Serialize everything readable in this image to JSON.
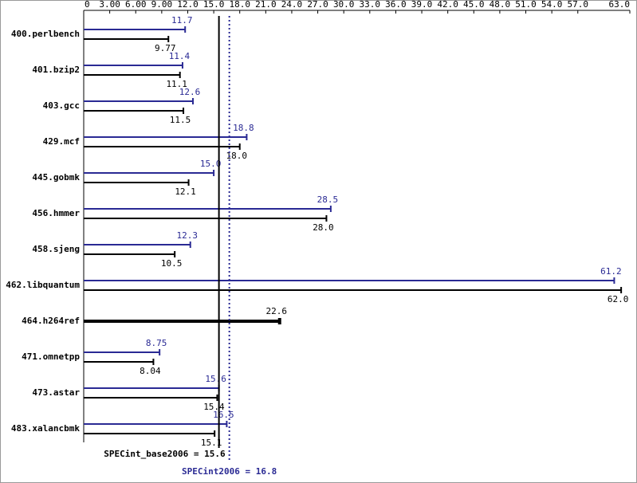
{
  "chart_data": {
    "type": "bar",
    "orientation": "horizontal",
    "categories": [
      "400.perlbench",
      "401.bzip2",
      "403.gcc",
      "429.mcf",
      "445.gobmk",
      "456.hmmer",
      "458.sjeng",
      "462.libquantum",
      "464.h264ref",
      "471.omnetpp",
      "473.astar",
      "483.xalancbmk"
    ],
    "series": [
      {
        "color": "#2a2a94",
        "values": [
          11.7,
          11.4,
          12.6,
          18.8,
          15.0,
          28.5,
          12.3,
          61.2,
          null,
          8.75,
          15.6,
          16.5
        ],
        "value_labels": [
          "11.7",
          "11.4",
          "12.6",
          "18.8",
          "15.0",
          "28.5",
          "12.3",
          "61.2",
          null,
          "8.75",
          "15.6",
          "16.5"
        ]
      },
      {
        "color": "#000000",
        "values": [
          9.77,
          11.1,
          11.5,
          18.0,
          12.1,
          28.0,
          10.5,
          62.0,
          22.6,
          8.04,
          15.4,
          15.1
        ],
        "value_labels": [
          "9.77",
          "11.1",
          "11.5",
          "18.0",
          "12.1",
          "28.0",
          "10.5",
          "62.0",
          "22.6",
          "8.04",
          "15.4",
          "15.1"
        ]
      }
    ],
    "xlim": [
      0,
      63
    ],
    "xticks": [
      0,
      {
        "value": 3,
        "label": "3.00"
      },
      {
        "value": 6,
        "label": "6.00"
      },
      {
        "value": 9,
        "label": "9.00"
      },
      {
        "value": 12,
        "label": "12.0"
      },
      {
        "value": 15,
        "label": "15.0"
      },
      {
        "value": 18,
        "label": "18.0"
      },
      {
        "value": 21,
        "label": "21.0"
      },
      {
        "value": 24,
        "label": "24.0"
      },
      {
        "value": 27,
        "label": "27.0"
      },
      {
        "value": 30,
        "label": "30.0"
      },
      {
        "value": 33,
        "label": "33.0"
      },
      {
        "value": 36,
        "label": "36.0"
      },
      {
        "value": 39,
        "label": "39.0"
      },
      {
        "value": 42,
        "label": "42.0"
      },
      {
        "value": 45,
        "label": "45.0"
      },
      {
        "value": 48,
        "label": "48.0"
      },
      {
        "value": 51,
        "label": "51.0"
      },
      {
        "value": 54,
        "label": "54.0"
      },
      {
        "value": 57,
        "label": "57.0"
      },
      {
        "value": 63,
        "label": "63.0"
      }
    ],
    "reference_lines": [
      {
        "label": "SPECint_base2006 = 15.6",
        "value": 15.6,
        "color": "#000000",
        "style": "solid"
      },
      {
        "label": "SPECint2006 = 16.8",
        "value": 16.8,
        "color": "#2a2a94",
        "style": "dotted"
      }
    ]
  }
}
